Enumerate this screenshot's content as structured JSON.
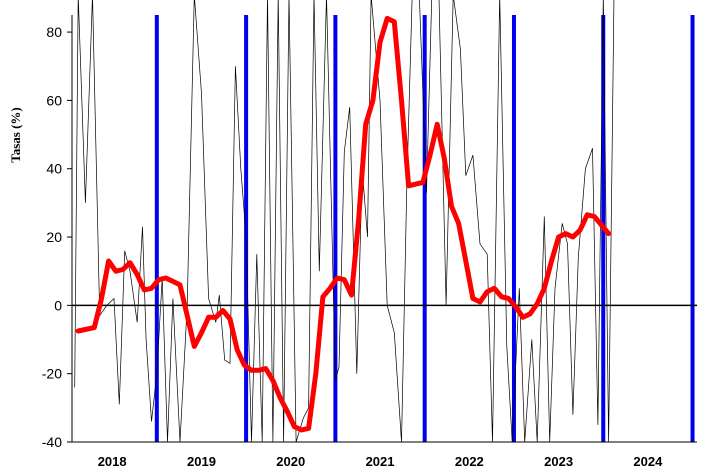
{
  "chart_data": {
    "type": "line",
    "title": "",
    "xlabel": "",
    "ylabel": "Tasas (%)",
    "ylim": [
      -40,
      85
    ],
    "yticks": [
      -40,
      -20,
      0,
      20,
      40,
      60,
      80
    ],
    "years": [
      "2018",
      "2019",
      "2020",
      "2021",
      "2022",
      "2023",
      "2024"
    ],
    "grid": false,
    "legend": "none",
    "series": [
      {
        "color": "#ff0000",
        "x": [
          2017.62,
          2017.8,
          2017.88,
          2017.96,
          2018.04,
          2018.12,
          2018.2,
          2018.28,
          2018.36,
          2018.44,
          2018.52,
          2018.6,
          2018.68,
          2018.76,
          2018.84,
          2018.92,
          2019.0,
          2019.08,
          2019.16,
          2019.24,
          2019.32,
          2019.4,
          2019.48,
          2019.56,
          2019.64,
          2019.72,
          2019.8,
          2019.88,
          2019.96,
          2020.04,
          2020.12,
          2020.2,
          2020.28,
          2020.36,
          2020.44,
          2020.52,
          2020.6,
          2020.68,
          2020.76,
          2020.84,
          2020.92,
          2021.0,
          2021.08,
          2021.16,
          2021.24,
          2021.32,
          2021.4,
          2021.48,
          2021.56,
          2021.64,
          2021.72,
          2021.8,
          2021.88,
          2021.96,
          2022.04,
          2022.12,
          2022.2,
          2022.28,
          2022.36,
          2022.44,
          2022.52,
          2022.6,
          2022.68,
          2022.76,
          2022.84,
          2022.92,
          2023.0,
          2023.08,
          2023.16,
          2023.24,
          2023.32,
          2023.4,
          2023.48,
          2023.56,
          2023.64,
          2023.72,
          2023.8
        ],
        "values": [
          -7.5,
          -6.5,
          2,
          13,
          10,
          10.5,
          12.5,
          9,
          4.5,
          5,
          7.5,
          8,
          7,
          6,
          -3,
          -12,
          -8,
          -3.5,
          -3.5,
          -1.5,
          -4,
          -13,
          -17.5,
          -19,
          -19,
          -18.5,
          -22,
          -27,
          -31,
          -35.5,
          -36.5,
          -36,
          -20,
          2.5,
          5,
          8,
          7.5,
          3,
          25,
          53,
          60,
          77,
          84,
          83,
          60,
          35,
          35.5,
          36,
          44,
          53,
          43,
          29,
          24,
          13,
          2,
          1,
          4,
          5,
          2.5,
          2,
          -0.5,
          -3.5,
          -2.5,
          0.5,
          5,
          13,
          20,
          21,
          20,
          22,
          26.5,
          26,
          23.5,
          21,
          null,
          null,
          null
        ]
      }
    ]
  }
}
